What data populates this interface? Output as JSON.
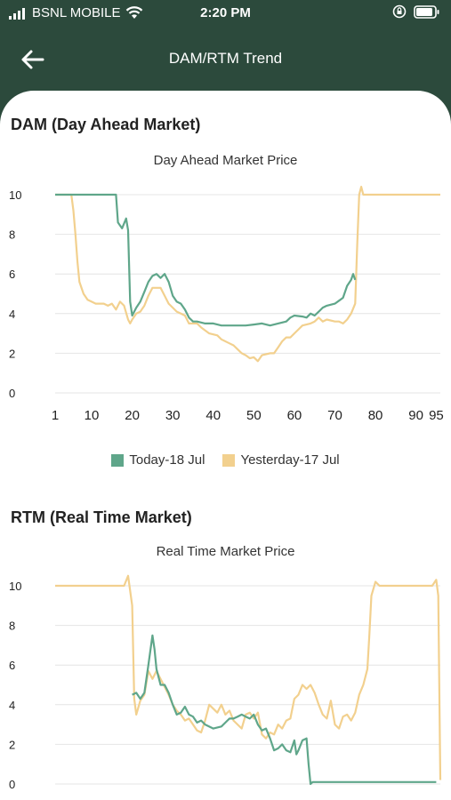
{
  "status": {
    "carrier": "BSNL MOBILE",
    "time": "2:20 PM"
  },
  "nav": {
    "title": "DAM/RTM Trend",
    "back_icon": "arrow-left-icon"
  },
  "dam": {
    "section_title": "DAM (Day Ahead Market)",
    "chart_title": "Day Ahead Market Price",
    "legend_today": "Today-18 Jul",
    "legend_yesterday": "Yesterday-17 Jul"
  },
  "rtm": {
    "section_title": "RTM (Real Time Market)",
    "chart_title": "Real Time Market Price"
  },
  "colors": {
    "today": "#5fa68a",
    "yesterday": "#f2d08e",
    "header": "#2c4a3c"
  },
  "chart_data": [
    {
      "type": "line",
      "title": "Day Ahead Market Price",
      "x_ticks": [
        1,
        10,
        20,
        30,
        40,
        50,
        60,
        70,
        80,
        90,
        95
      ],
      "y_ticks": [
        0,
        2,
        4,
        6,
        8,
        10
      ],
      "xlim": [
        1,
        96
      ],
      "ylim": [
        0,
        10
      ],
      "grid": true,
      "legend": "bottom",
      "series": [
        {
          "name": "Today-18 Jul",
          "color": "#5fa68a",
          "points": [
            [
              1,
              10
            ],
            [
              4,
              10
            ],
            [
              8,
              10
            ],
            [
              12,
              10
            ],
            [
              16,
              10
            ],
            [
              16.5,
              8.6
            ],
            [
              17.5,
              8.3
            ],
            [
              18.5,
              8.8
            ],
            [
              19,
              8.2
            ],
            [
              19.5,
              4.6
            ],
            [
              20,
              3.9
            ],
            [
              21,
              4.3
            ],
            [
              22,
              4.6
            ],
            [
              23,
              5.1
            ],
            [
              24,
              5.6
            ],
            [
              25,
              5.9
            ],
            [
              26,
              6.0
            ],
            [
              27,
              5.8
            ],
            [
              28,
              6.0
            ],
            [
              29,
              5.6
            ],
            [
              30,
              4.9
            ],
            [
              31,
              4.6
            ],
            [
              32,
              4.5
            ],
            [
              33,
              4.2
            ],
            [
              34,
              3.8
            ],
            [
              35,
              3.6
            ],
            [
              36,
              3.6
            ],
            [
              38,
              3.5
            ],
            [
              40,
              3.5
            ],
            [
              42,
              3.4
            ],
            [
              45,
              3.4
            ],
            [
              48,
              3.4
            ],
            [
              50,
              3.45
            ],
            [
              52,
              3.5
            ],
            [
              54,
              3.4
            ],
            [
              56,
              3.5
            ],
            [
              58,
              3.6
            ],
            [
              59,
              3.8
            ],
            [
              60,
              3.9
            ],
            [
              62,
              3.85
            ],
            [
              63,
              3.8
            ],
            [
              64,
              4.0
            ],
            [
              65,
              3.9
            ],
            [
              66,
              4.1
            ],
            [
              67,
              4.3
            ],
            [
              68,
              4.4
            ],
            [
              70,
              4.5
            ],
            [
              72,
              4.8
            ],
            [
              73,
              5.4
            ],
            [
              74,
              5.7
            ],
            [
              74.5,
              6.0
            ],
            [
              75,
              5.7
            ]
          ]
        },
        {
          "name": "Yesterday-17 Jul",
          "color": "#f2d08e",
          "points": [
            [
              1,
              10
            ],
            [
              4,
              10
            ],
            [
              5,
              10
            ],
            [
              5.5,
              9.2
            ],
            [
              6,
              8.0
            ],
            [
              6.5,
              6.6
            ],
            [
              7,
              5.6
            ],
            [
              8,
              5.0
            ],
            [
              9,
              4.7
            ],
            [
              10,
              4.6
            ],
            [
              11,
              4.5
            ],
            [
              13,
              4.5
            ],
            [
              14,
              4.4
            ],
            [
              15,
              4.5
            ],
            [
              16,
              4.2
            ],
            [
              17,
              4.6
            ],
            [
              18,
              4.4
            ],
            [
              19,
              3.7
            ],
            [
              19.5,
              3.5
            ],
            [
              20,
              3.7
            ],
            [
              21,
              4.0
            ],
            [
              22,
              4.1
            ],
            [
              23,
              4.4
            ],
            [
              24,
              4.9
            ],
            [
              25,
              5.3
            ],
            [
              26,
              5.3
            ],
            [
              27,
              5.3
            ],
            [
              28,
              4.9
            ],
            [
              29,
              4.5
            ],
            [
              30,
              4.3
            ],
            [
              31,
              4.1
            ],
            [
              32,
              4.0
            ],
            [
              33,
              3.9
            ],
            [
              34,
              3.5
            ],
            [
              35,
              3.5
            ],
            [
              36,
              3.5
            ],
            [
              37,
              3.3
            ],
            [
              39,
              3.0
            ],
            [
              41,
              2.9
            ],
            [
              42,
              2.7
            ],
            [
              44,
              2.5
            ],
            [
              45,
              2.4
            ],
            [
              46,
              2.2
            ],
            [
              47,
              2.0
            ],
            [
              48,
              1.9
            ],
            [
              49,
              1.75
            ],
            [
              50,
              1.8
            ],
            [
              51,
              1.6
            ],
            [
              52,
              1.9
            ],
            [
              53,
              1.95
            ],
            [
              54,
              2.0
            ],
            [
              55,
              2.0
            ],
            [
              56,
              2.3
            ],
            [
              57,
              2.6
            ],
            [
              58,
              2.8
            ],
            [
              59,
              2.8
            ],
            [
              60,
              3.0
            ],
            [
              61,
              3.2
            ],
            [
              62,
              3.4
            ],
            [
              64,
              3.5
            ],
            [
              65,
              3.6
            ],
            [
              66,
              3.8
            ],
            [
              67,
              3.6
            ],
            [
              68,
              3.7
            ],
            [
              70,
              3.6
            ],
            [
              71,
              3.6
            ],
            [
              72,
              3.5
            ],
            [
              73,
              3.7
            ],
            [
              74,
              4.0
            ],
            [
              75,
              4.5
            ],
            [
              75.5,
              7.5
            ],
            [
              76,
              10
            ],
            [
              76.5,
              10.4
            ],
            [
              77,
              10
            ],
            [
              80,
              10
            ],
            [
              85,
              10
            ],
            [
              90,
              10
            ],
            [
              96,
              10
            ]
          ]
        }
      ]
    },
    {
      "type": "line",
      "title": "Real Time Market Price",
      "y_ticks": [
        0,
        2,
        4,
        6,
        8,
        10
      ],
      "xlim": [
        1,
        96
      ],
      "ylim": [
        0,
        10
      ],
      "grid": true,
      "series": [
        {
          "name": "Today-18 Jul",
          "color": "#5fa68a",
          "points": [
            [
              20,
              4.5
            ],
            [
              21,
              4.6
            ],
            [
              22,
              4.3
            ],
            [
              23,
              4.6
            ],
            [
              24,
              6.0
            ],
            [
              25,
              7.5
            ],
            [
              25.5,
              6.8
            ],
            [
              26,
              5.8
            ],
            [
              27,
              5.0
            ],
            [
              28,
              5.0
            ],
            [
              29,
              4.6
            ],
            [
              30,
              4.0
            ],
            [
              31,
              3.5
            ],
            [
              32,
              3.6
            ],
            [
              33,
              3.9
            ],
            [
              34,
              3.5
            ],
            [
              35,
              3.4
            ],
            [
              36,
              3.1
            ],
            [
              37,
              3.2
            ],
            [
              38,
              3.0
            ],
            [
              40,
              2.8
            ],
            [
              42,
              2.9
            ],
            [
              43,
              3.1
            ],
            [
              44,
              3.3
            ],
            [
              45,
              3.3
            ],
            [
              46,
              3.4
            ],
            [
              47,
              3.5
            ],
            [
              48,
              3.4
            ],
            [
              49,
              3.3
            ],
            [
              50,
              3.5
            ],
            [
              51,
              3.0
            ],
            [
              52,
              2.7
            ],
            [
              53,
              2.8
            ],
            [
              54,
              2.3
            ],
            [
              55,
              1.7
            ],
            [
              56,
              1.8
            ],
            [
              57,
              2.0
            ],
            [
              58,
              1.7
            ],
            [
              59,
              1.6
            ],
            [
              60,
              2.2
            ],
            [
              60.5,
              1.5
            ],
            [
              61,
              1.7
            ],
            [
              62,
              2.2
            ],
            [
              63,
              2.3
            ],
            [
              63.5,
              1.0
            ],
            [
              64,
              0
            ],
            [
              64.5,
              0.1
            ],
            [
              66,
              0.1
            ],
            [
              70,
              0.1
            ],
            [
              80,
              0.1
            ],
            [
              90,
              0.1
            ],
            [
              95,
              0.1
            ]
          ]
        },
        {
          "name": "Yesterday-17 Jul",
          "color": "#f2d08e",
          "points": [
            [
              1,
              10
            ],
            [
              5,
              10
            ],
            [
              10,
              10
            ],
            [
              15,
              10
            ],
            [
              18,
              10
            ],
            [
              19,
              10.5
            ],
            [
              20,
              9.0
            ],
            [
              20.5,
              4.3
            ],
            [
              21,
              3.5
            ],
            [
              22,
              4.2
            ],
            [
              23,
              4.5
            ],
            [
              24,
              5.7
            ],
            [
              25,
              5.3
            ],
            [
              26,
              5.7
            ],
            [
              27,
              5.3
            ],
            [
              28,
              4.9
            ],
            [
              29,
              4.5
            ],
            [
              30,
              4.0
            ],
            [
              31,
              3.7
            ],
            [
              32,
              3.5
            ],
            [
              33,
              3.2
            ],
            [
              34,
              3.3
            ],
            [
              35,
              3.0
            ],
            [
              36,
              2.7
            ],
            [
              37,
              2.6
            ],
            [
              38,
              3.2
            ],
            [
              39,
              4.0
            ],
            [
              40,
              3.8
            ],
            [
              41,
              3.6
            ],
            [
              42,
              4.0
            ],
            [
              43,
              3.5
            ],
            [
              44,
              3.7
            ],
            [
              45,
              3.2
            ],
            [
              46,
              3.0
            ],
            [
              47,
              2.8
            ],
            [
              48,
              3.5
            ],
            [
              49,
              3.6
            ],
            [
              50,
              3.3
            ],
            [
              51,
              3.6
            ],
            [
              52,
              2.5
            ],
            [
              53,
              2.3
            ],
            [
              54,
              2.6
            ],
            [
              55,
              2.5
            ],
            [
              56,
              3.0
            ],
            [
              57,
              2.8
            ],
            [
              58,
              3.2
            ],
            [
              59,
              3.3
            ],
            [
              60,
              4.3
            ],
            [
              61,
              4.5
            ],
            [
              62,
              5.0
            ],
            [
              63,
              4.8
            ],
            [
              64,
              5.0
            ],
            [
              65,
              4.6
            ],
            [
              66,
              4.0
            ],
            [
              67,
              3.5
            ],
            [
              68,
              3.3
            ],
            [
              69,
              4.2
            ],
            [
              70,
              3.0
            ],
            [
              71,
              2.8
            ],
            [
              72,
              3.4
            ],
            [
              73,
              3.5
            ],
            [
              74,
              3.2
            ],
            [
              75,
              3.6
            ],
            [
              76,
              4.5
            ],
            [
              77,
              5.0
            ],
            [
              78,
              5.8
            ],
            [
              78.5,
              7.5
            ],
            [
              79,
              9.5
            ],
            [
              80,
              10.2
            ],
            [
              81,
              10
            ],
            [
              85,
              10
            ],
            [
              90,
              10
            ],
            [
              94,
              10
            ],
            [
              95,
              10.3
            ],
            [
              95.5,
              9.5
            ],
            [
              96,
              0.2
            ]
          ]
        }
      ]
    }
  ]
}
